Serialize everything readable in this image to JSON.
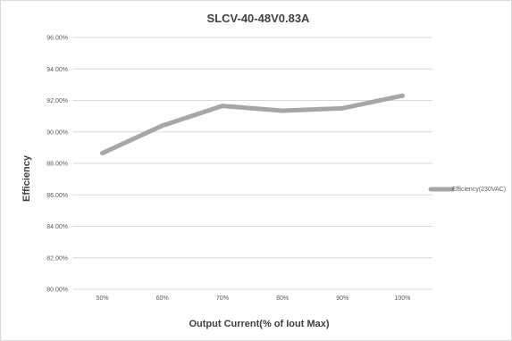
{
  "chart_data": {
    "type": "line",
    "title": "SLCV-40-48V0.83A",
    "xlabel": "Output Current(% of Iout Max)",
    "ylabel": "Efficiency",
    "categories": [
      "50%",
      "60%",
      "70%",
      "80%",
      "90%",
      "100%"
    ],
    "y_ticks": [
      "80.00%",
      "82.00%",
      "84.00%",
      "86.00%",
      "88.00%",
      "90.00%",
      "92.00%",
      "94.00%",
      "96.00%"
    ],
    "ylim": [
      80,
      96
    ],
    "grid": true,
    "legend_position": "right",
    "series": [
      {
        "name": "Efficiency(230VAC)",
        "values": [
          88.65,
          90.4,
          91.65,
          91.35,
          91.5,
          92.3
        ],
        "color": "#a6a6a6"
      }
    ]
  }
}
